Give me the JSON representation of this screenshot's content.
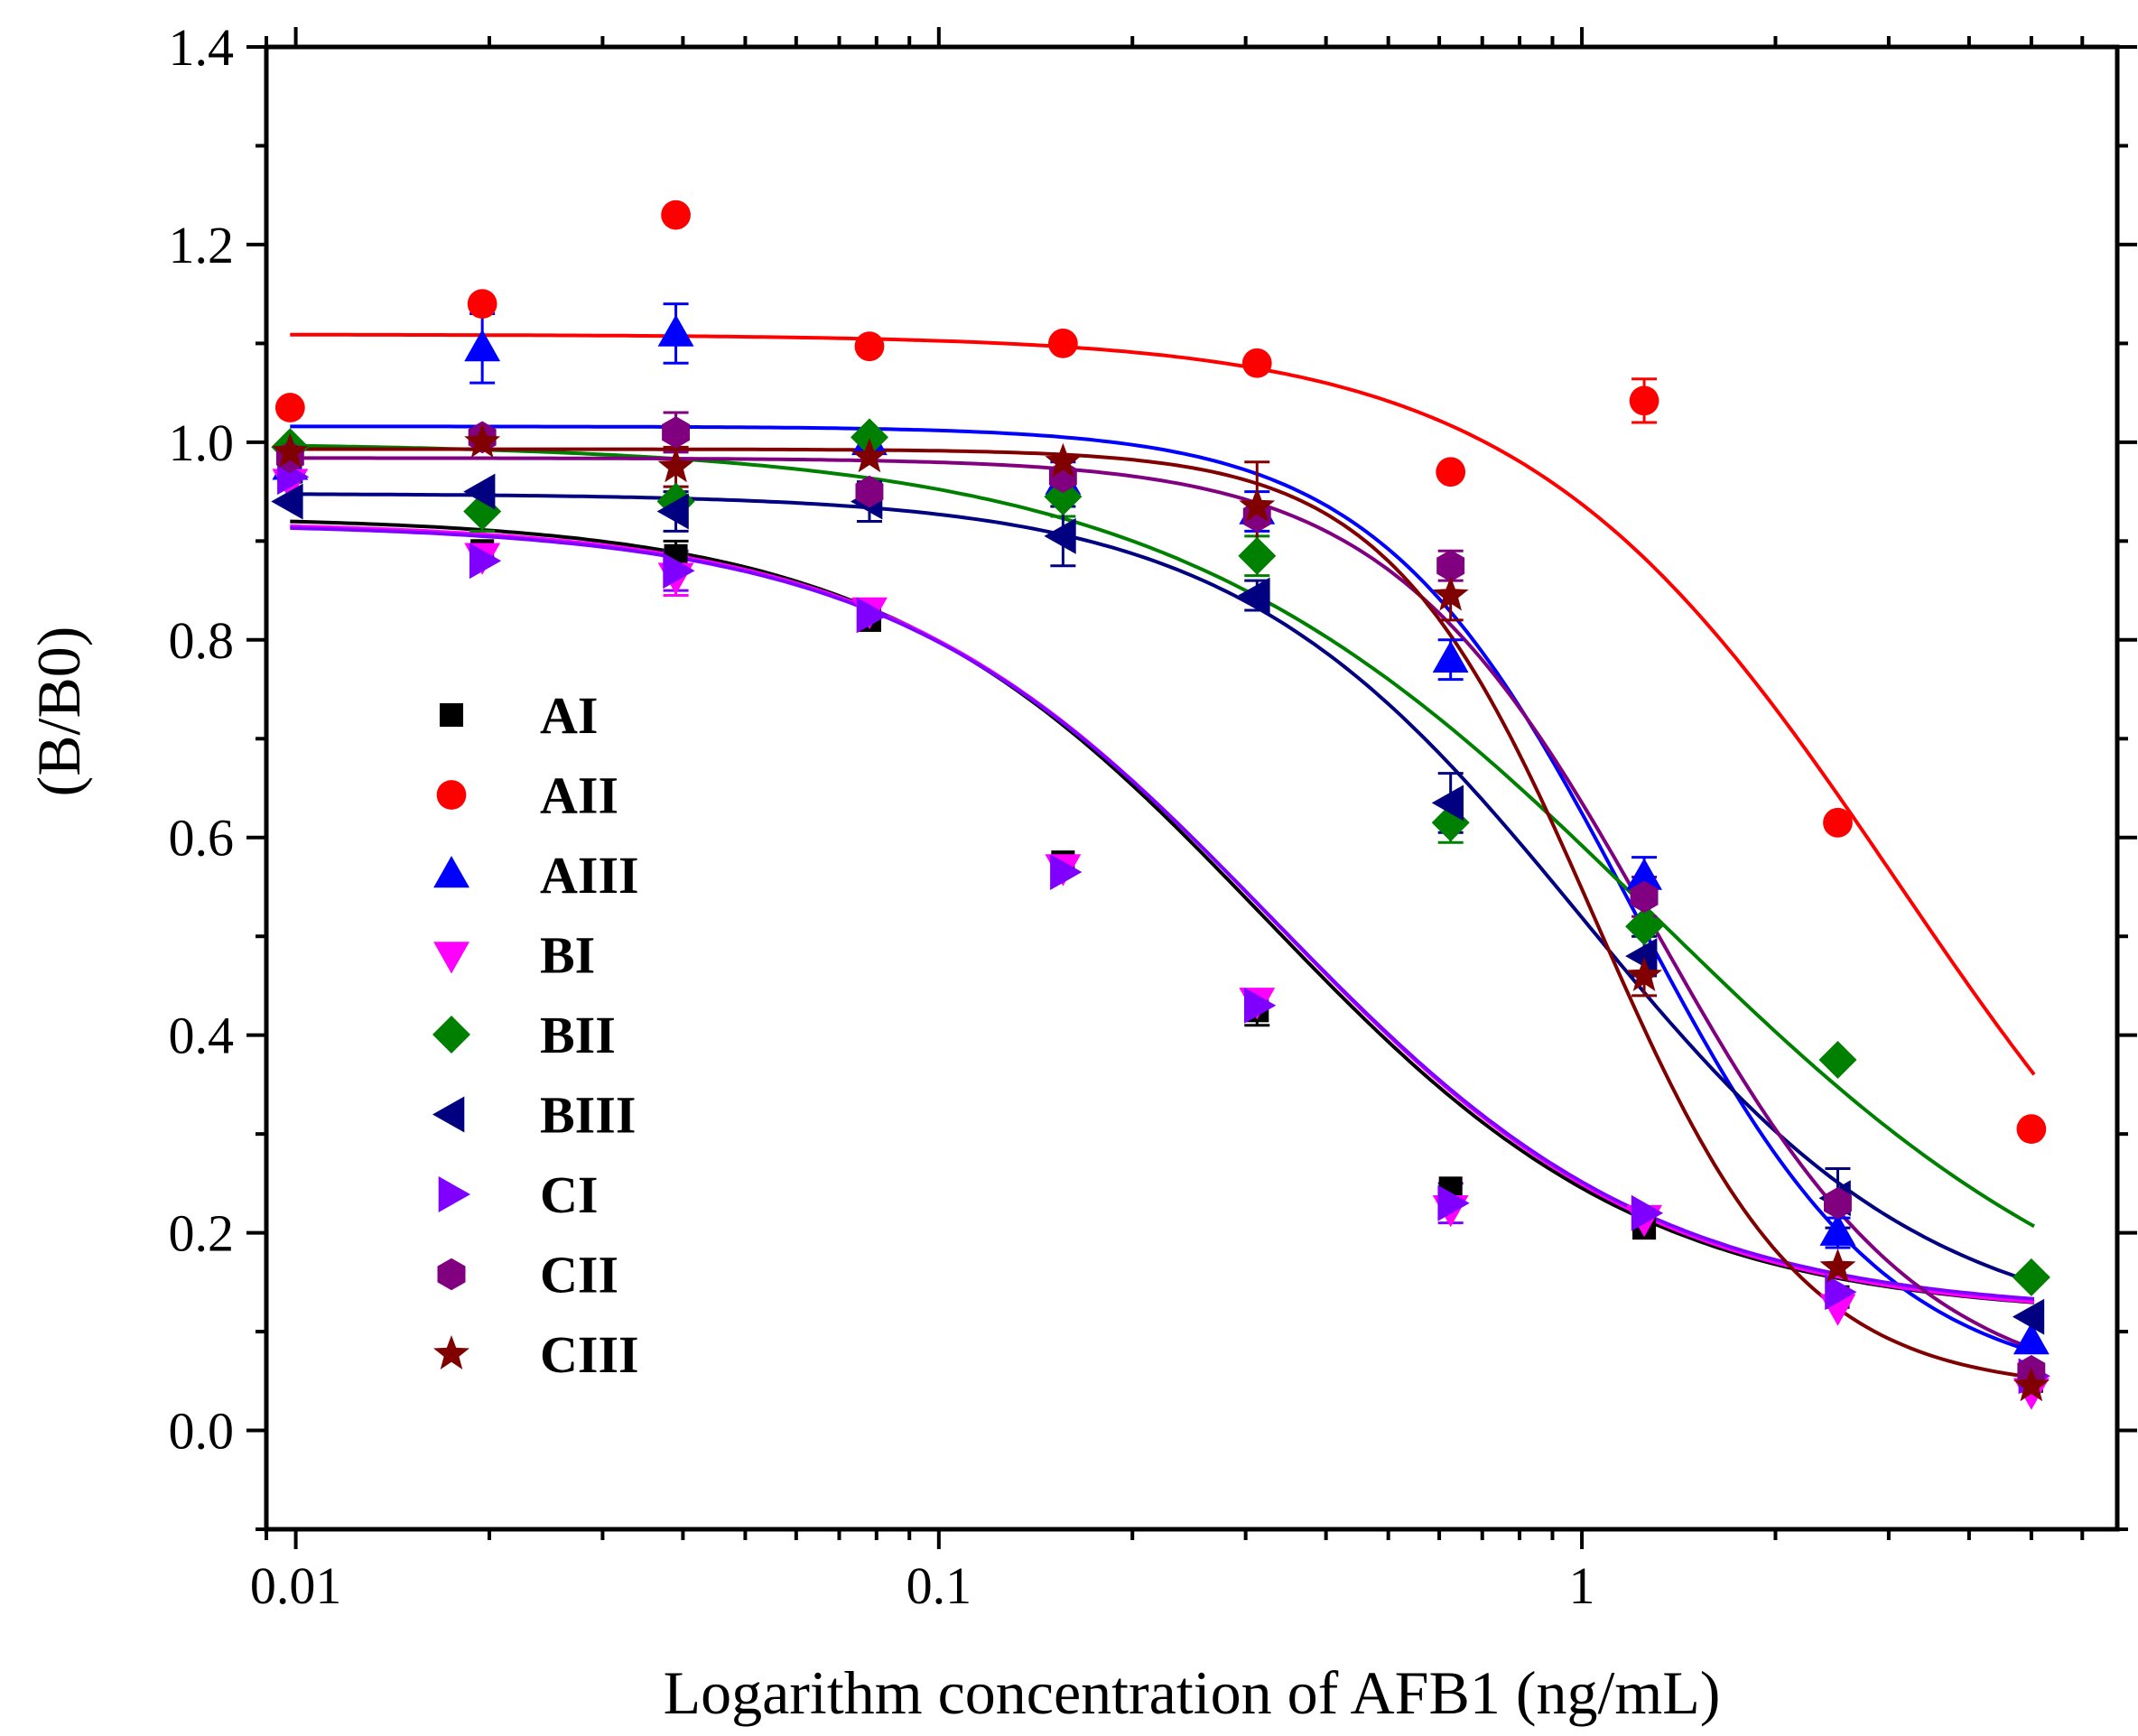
{
  "chart_data": {
    "type": "scatter",
    "title": "",
    "xlabel": "Logarithm concentration of AFB1 (ng/mL)",
    "ylabel": "(B/B0)",
    "xscale": "log",
    "xlim": [
      0.009,
      6.8
    ],
    "ylim": [
      -0.1,
      1.4
    ],
    "xticks": [
      {
        "value": 0.01,
        "label": "0.01"
      },
      {
        "value": 0.1,
        "label": "0.1"
      },
      {
        "value": 1,
        "label": "1"
      }
    ],
    "yticks": [
      {
        "value": 0.0,
        "label": "0.0"
      },
      {
        "value": 0.2,
        "label": "0.2"
      },
      {
        "value": 0.4,
        "label": "0.4"
      },
      {
        "value": 0.6,
        "label": "0.6"
      },
      {
        "value": 0.8,
        "label": "0.8"
      },
      {
        "value": 1.0,
        "label": "1.0"
      },
      {
        "value": 1.2,
        "label": "1.2"
      },
      {
        "value": 1.4,
        "label": "1.4"
      }
    ],
    "grid": false,
    "legend_position": "middle-left",
    "x": [
      0.0098,
      0.0195,
      0.039,
      0.078,
      0.156,
      0.3125,
      0.625,
      1.25,
      2.5,
      5.0
    ],
    "series": [
      {
        "name": "AI",
        "marker": "square",
        "color": "#000000",
        "values": [
          0.97,
          0.89,
          0.885,
          0.82,
          0.575,
          0.425,
          0.245,
          0.205,
          0.135,
          0.05
        ],
        "errors": [
          0.01,
          0.01,
          0.015,
          0.01,
          0.01,
          0.015,
          0.01,
          0.01,
          0.01,
          0.01
        ],
        "fit": {
          "top": 0.925,
          "bottom": 0.115,
          "ec50": 0.32,
          "hill": 1.45
        }
      },
      {
        "name": "AII",
        "marker": "circle",
        "color": "#ff0000",
        "values": [
          1.035,
          1.14,
          1.23,
          1.097,
          1.1,
          1.08,
          0.97,
          1.042,
          0.615,
          0.305
        ],
        "errors": [
          0.01,
          0.01,
          0.01,
          0.01,
          0.01,
          0.01,
          0.01,
          0.022,
          0.01,
          0.01
        ],
        "fit": {
          "top": 1.109,
          "bottom": 0.0,
          "ec50": 3.1,
          "hill": 1.5
        }
      },
      {
        "name": "AIII",
        "marker": "triangle-up",
        "color": "#0000ff",
        "values": [
          0.975,
          1.095,
          1.11,
          1.0,
          0.96,
          0.93,
          0.78,
          0.56,
          0.2,
          0.09
        ],
        "errors": [
          0.015,
          0.035,
          0.03,
          0.01,
          0.02,
          0.02,
          0.02,
          0.02,
          0.015,
          0.01
        ],
        "fit": {
          "top": 1.016,
          "bottom": 0.04,
          "ec50": 1.2,
          "hill": 2.2
        }
      },
      {
        "name": "BI",
        "marker": "triangle-down",
        "color": "#ff00ff",
        "values": [
          0.96,
          0.885,
          0.865,
          0.83,
          0.57,
          0.435,
          0.225,
          0.215,
          0.125,
          0.04
        ],
        "errors": [
          0.01,
          0.01,
          0.02,
          0.01,
          0.01,
          0.01,
          0.01,
          0.01,
          0.01,
          0.01
        ],
        "fit": {
          "top": 0.92,
          "bottom": 0.115,
          "ec50": 0.33,
          "hill": 1.45
        }
      },
      {
        "name": "BII",
        "marker": "diamond",
        "color": "#008000",
        "values": [
          0.995,
          0.93,
          0.94,
          1.005,
          0.945,
          0.885,
          0.615,
          0.51,
          0.375,
          0.155
        ],
        "errors": [
          0.01,
          0.02,
          0.01,
          0.01,
          0.02,
          0.02,
          0.02,
          0.01,
          0.01,
          0.01
        ],
        "fit": {
          "top": 1.0,
          "bottom": 0.04,
          "ec50": 1.3,
          "hill": 1.15
        }
      },
      {
        "name": "BIII",
        "marker": "triangle-left",
        "color": "#000080",
        "values": [
          0.94,
          0.95,
          0.93,
          0.94,
          0.905,
          0.845,
          0.635,
          0.48,
          0.235,
          0.115
        ],
        "errors": [
          0.01,
          0.01,
          0.02,
          0.02,
          0.03,
          0.015,
          0.03,
          0.02,
          0.03,
          0.01
        ],
        "fit": {
          "top": 0.948,
          "bottom": 0.09,
          "ec50": 1.0,
          "hill": 1.6
        }
      },
      {
        "name": "CI",
        "marker": "triangle-right",
        "color": "#8000ff",
        "values": [
          0.965,
          0.88,
          0.87,
          0.825,
          0.565,
          0.43,
          0.23,
          0.22,
          0.14,
          0.055
        ],
        "errors": [
          0.01,
          0.01,
          0.02,
          0.01,
          0.01,
          0.01,
          0.02,
          0.01,
          0.01,
          0.01
        ],
        "fit": {
          "top": 0.918,
          "bottom": 0.118,
          "ec50": 0.33,
          "hill": 1.45
        }
      },
      {
        "name": "CII",
        "marker": "hexagon",
        "color": "#800080",
        "values": [
          0.985,
          1.005,
          1.01,
          0.95,
          0.965,
          0.925,
          0.875,
          0.54,
          0.23,
          0.06
        ],
        "errors": [
          0.01,
          0.01,
          0.02,
          0.01,
          0.01,
          0.01,
          0.015,
          0.02,
          0.01,
          0.01
        ],
        "fit": {
          "top": 0.984,
          "bottom": 0.03,
          "ec50": 1.3,
          "hill": 2.1
        }
      },
      {
        "name": "CIII",
        "marker": "star",
        "color": "#800000",
        "values": [
          0.99,
          1.0,
          0.975,
          0.985,
          0.98,
          0.935,
          0.845,
          0.46,
          0.165,
          0.045
        ],
        "errors": [
          0.01,
          0.01,
          0.02,
          0.01,
          0.01,
          0.045,
          0.025,
          0.02,
          0.01,
          0.01
        ],
        "fit": {
          "top": 0.993,
          "bottom": 0.04,
          "ec50": 1.05,
          "hill": 2.7
        }
      }
    ]
  }
}
